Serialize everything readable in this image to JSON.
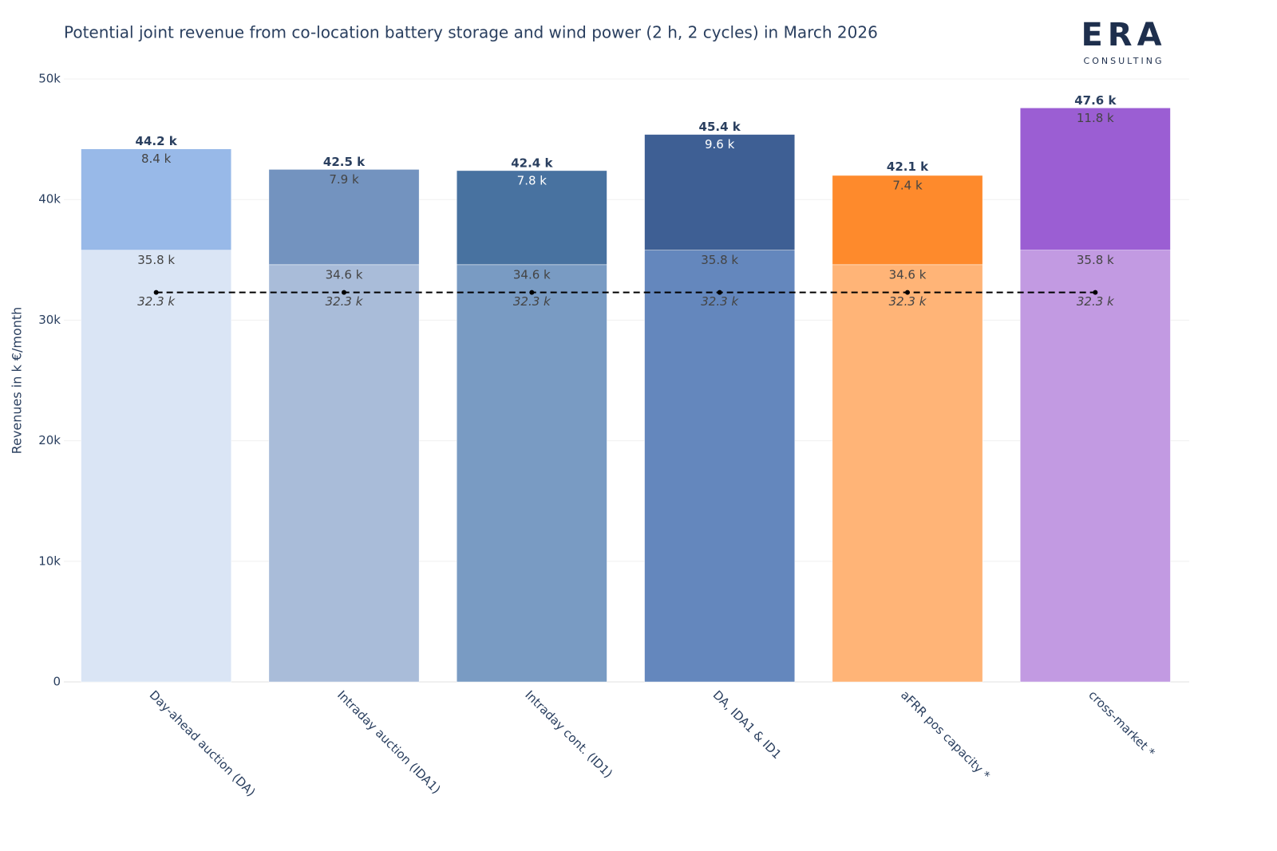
{
  "chart_data": {
    "type": "bar",
    "title": "Potential joint revenue from co-location battery storage and wind power (2 h, 2 cycles) in March 2026",
    "y_label": "Revenues in k €/month",
    "categories": [
      "Day-ahead auction (DA)",
      "Intraday auction (IDA1)",
      "Intraday cont. (ID1)",
      "DA, IDA1 & ID1",
      "aFRR pos capacity *",
      "cross-market *"
    ],
    "series": [
      {
        "colors": [
          "#dae5f5",
          "#a9bcd9",
          "#799bc3",
          "#6487bd",
          "#ffb477",
          "#c29ae2"
        ],
        "values": [
          35800,
          34600,
          34600,
          35800,
          34600,
          35800
        ],
        "value_labels": [
          "35.8 k",
          "34.6 k",
          "34.6 k",
          "35.8 k",
          "34.6 k",
          "35.8 k"
        ]
      },
      {
        "colors": [
          "#98b9e8",
          "#7393bf",
          "#4872a0",
          "#3e5f94",
          "#fe8a2c",
          "#9b5ed3"
        ],
        "values": [
          8400,
          7900,
          7800,
          9600,
          7400,
          11800
        ],
        "value_labels": [
          "8.4 k",
          "7.9 k",
          "7.8 k",
          "9.6 k",
          "7.4 k",
          "11.8 k"
        ]
      },
      {
        "type": "line",
        "color": "#000000",
        "dash": true,
        "values": [
          32300,
          32300,
          32300,
          32300,
          32300,
          32300
        ],
        "value_labels": [
          "32.3 k",
          "32.3 k",
          "32.3 k",
          "32.3 k",
          "32.3 k",
          "32.3 k"
        ]
      }
    ],
    "totals": {
      "values": [
        44200,
        42500,
        42400,
        45400,
        42100,
        47600
      ],
      "value_labels": [
        "44.2 k",
        "42.5 k",
        "42.4 k",
        "45.4 k",
        "42.1 k",
        "47.6 k"
      ]
    },
    "ylim": [
      0,
      50000
    ],
    "yticks": [
      0,
      {
        "value": 10000,
        "label": "10k"
      },
      {
        "value": 20000,
        "label": "20k"
      },
      {
        "value": 30000,
        "label": "30k"
      },
      {
        "value": 40000,
        "label": "40k"
      },
      {
        "value": 50000,
        "label": "50k"
      }
    ],
    "grid": true
  },
  "logo": {
    "text": "ERA",
    "subtext": "CONSULTING"
  }
}
